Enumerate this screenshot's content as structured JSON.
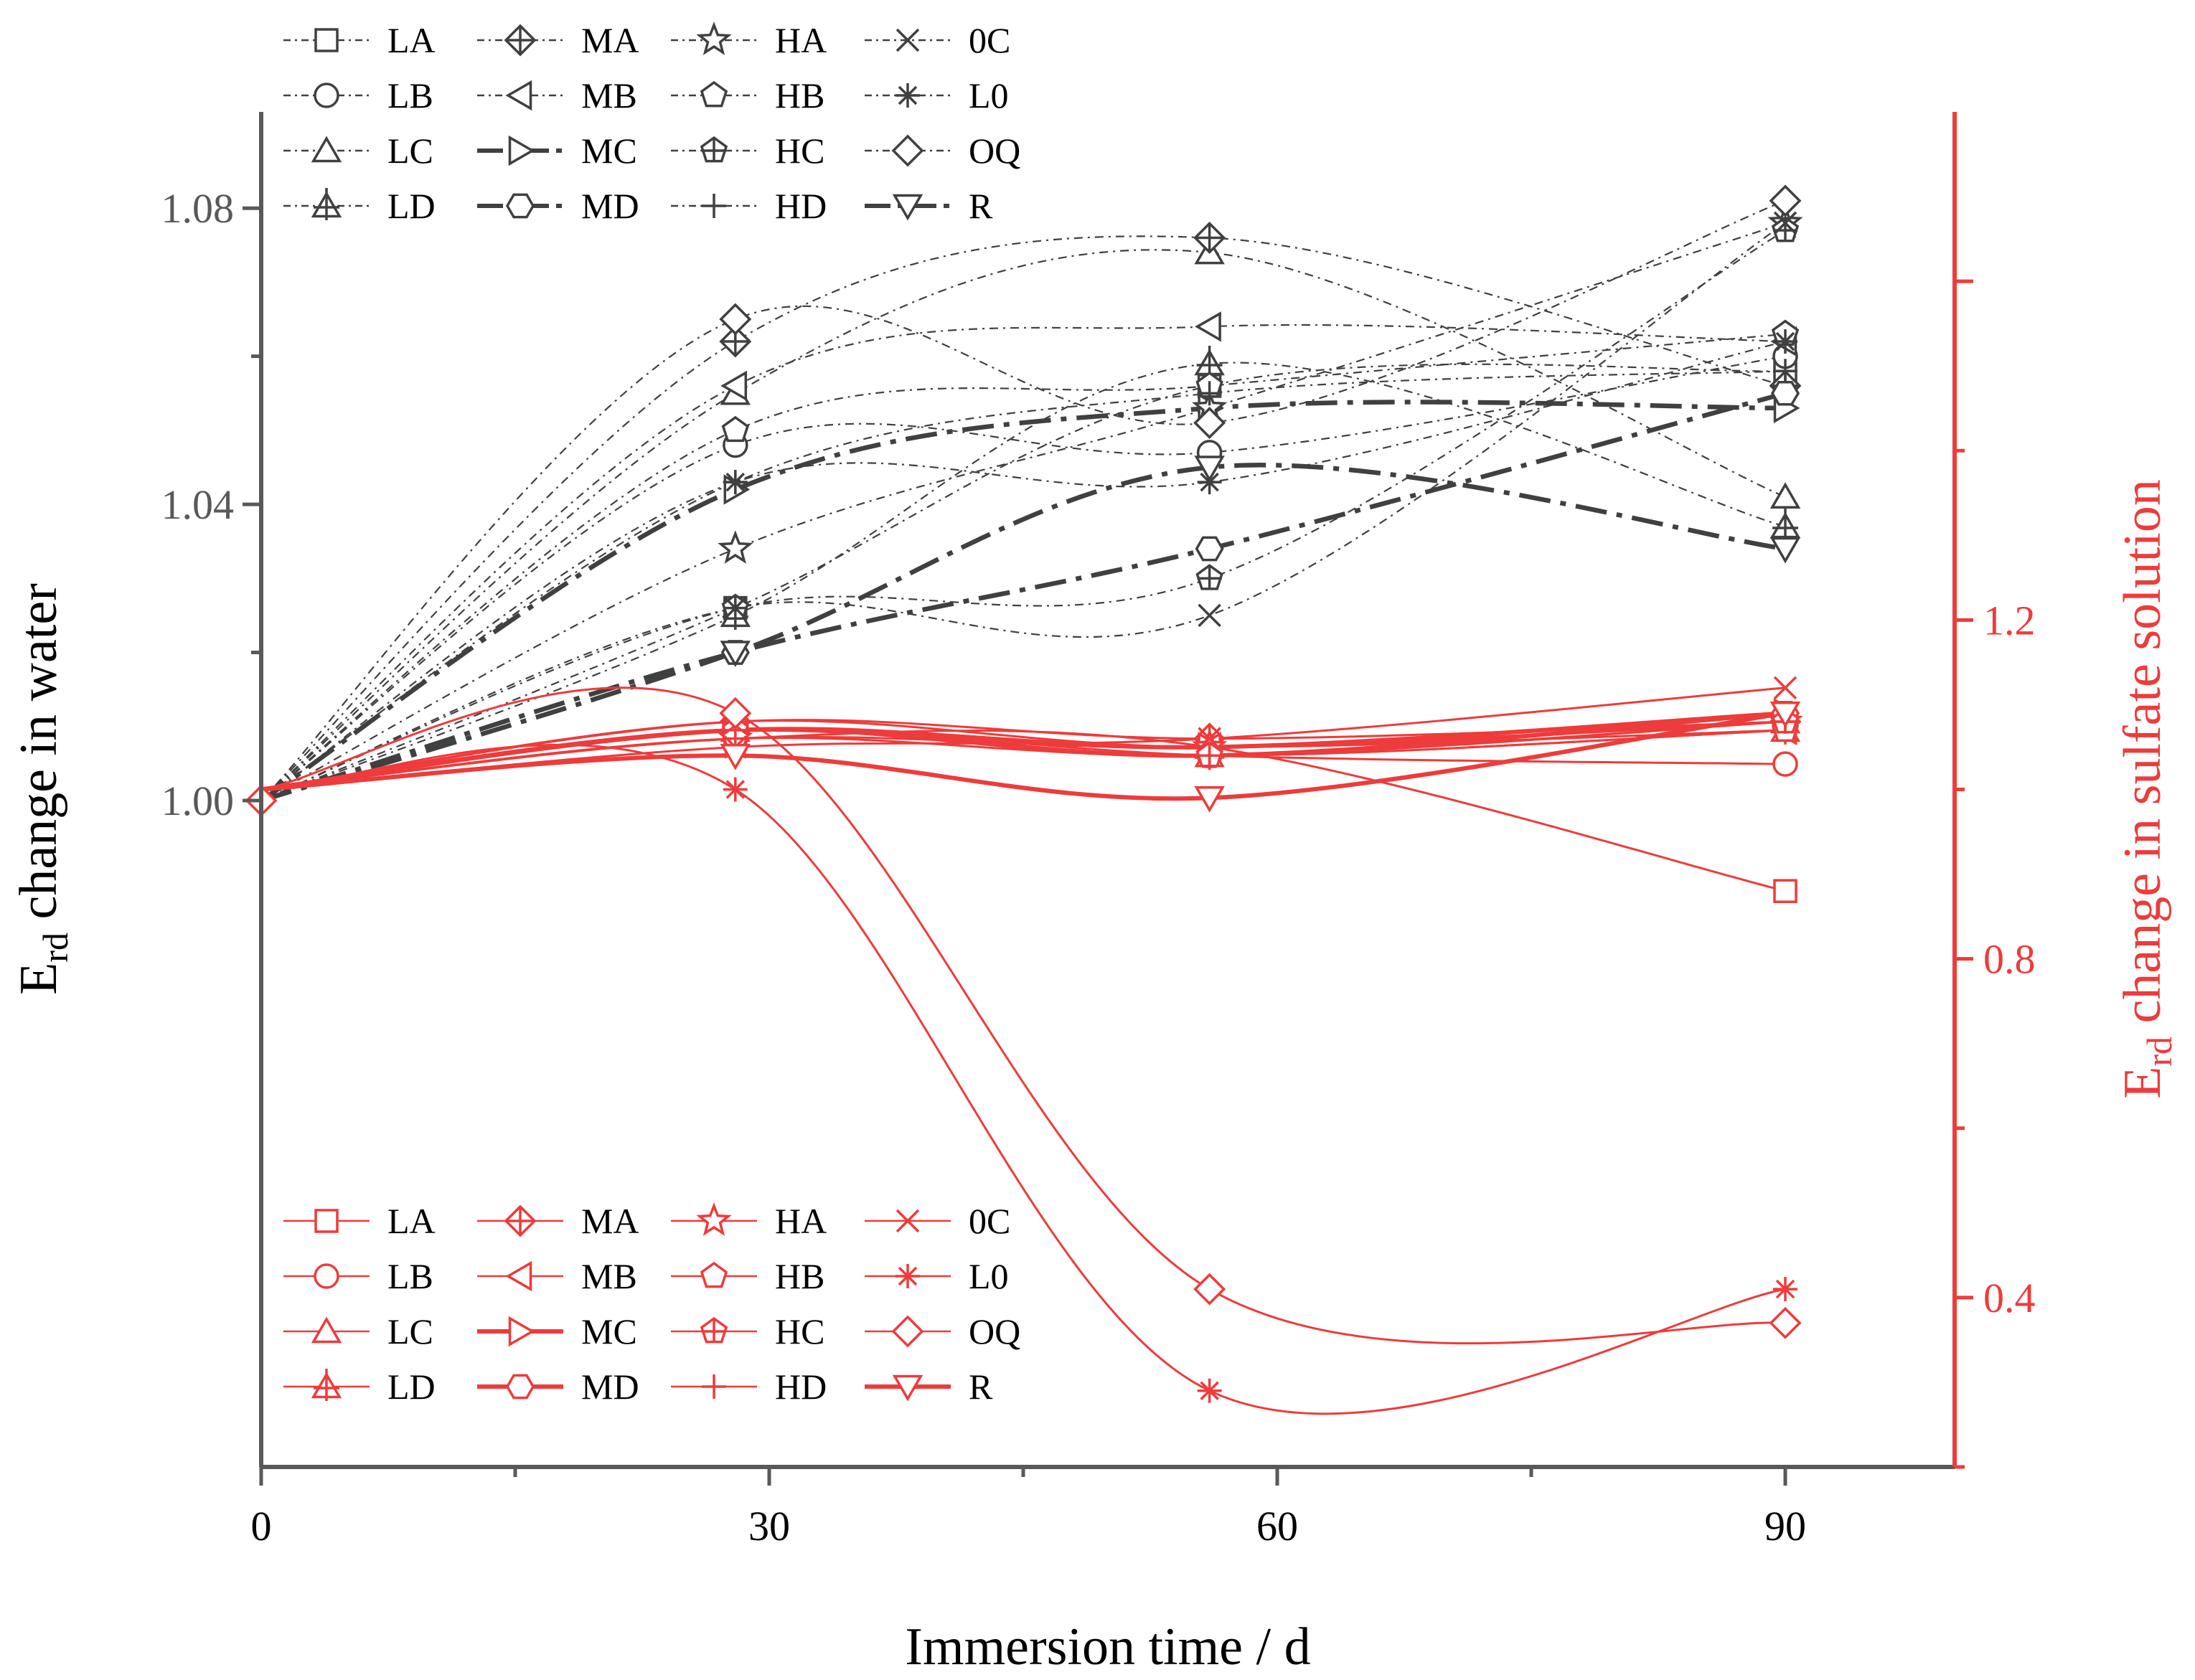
{
  "chart_data": {
    "type": "line",
    "x": [
      0,
      28,
      56,
      90
    ],
    "xlabel": "Immersion time / d",
    "xlim": [
      0,
      100
    ],
    "xticks": [
      0,
      30,
      60,
      90
    ],
    "xtick_labels": [
      "0",
      "30",
      "60",
      "90"
    ],
    "ylabel_left": {
      "base": "E",
      "sub": "rd",
      "rest": " change in water"
    },
    "ylabel_right": {
      "base": "E",
      "sub": "rd",
      "rest": " change in sulfate solution"
    },
    "ylim_left": [
      0.91,
      1.093
    ],
    "yticks_left": [
      1.0,
      1.04,
      1.08
    ],
    "ytick_labels_left": [
      "1.00",
      "1.04",
      "1.08"
    ],
    "ylim_right": [
      0.2,
      1.8
    ],
    "yticks_right": [
      0.4,
      0.8,
      1.2
    ],
    "ytick_labels_right": [
      "0.4",
      "0.8",
      "1.2"
    ],
    "colors": {
      "water": "#404040",
      "sulfate": "#ee3b3b",
      "axis_left": "#595959",
      "axis_right": "#ee3b3b"
    },
    "water_series": [
      {
        "name": "LA",
        "marker": "square",
        "dash": "dashdot",
        "values": [
          1.0,
          1.026,
          1.056,
          1.058
        ]
      },
      {
        "name": "LB",
        "marker": "circle",
        "dash": "dashdot",
        "values": [
          1.0,
          1.048,
          1.047,
          1.06
        ]
      },
      {
        "name": "LC",
        "marker": "triangle-up",
        "dash": "dashdot",
        "values": [
          1.0,
          1.055,
          1.074,
          1.041
        ]
      },
      {
        "name": "LD",
        "marker": "triangle-up-plus",
        "dash": "dashdot",
        "values": [
          1.0,
          1.025,
          1.059,
          1.037
        ]
      },
      {
        "name": "MA",
        "marker": "diamond-plus",
        "dash": "dashdot",
        "values": [
          1.0,
          1.062,
          1.076,
          1.056
        ]
      },
      {
        "name": "MB",
        "marker": "triangle-left",
        "dash": "dashdot",
        "values": [
          1.0,
          1.056,
          1.064,
          1.062
        ]
      },
      {
        "name": "MC",
        "marker": "triangle-right",
        "dash": "dashdot-bold",
        "values": [
          1.0,
          1.042,
          1.053,
          1.053
        ]
      },
      {
        "name": "MD",
        "marker": "hexagon",
        "dash": "dashdot-bold",
        "values": [
          1.0,
          1.02,
          1.034,
          1.055
        ]
      },
      {
        "name": "HA",
        "marker": "star",
        "dash": "dashdot",
        "values": [
          1.0,
          1.034,
          1.053,
          1.078
        ]
      },
      {
        "name": "HB",
        "marker": "pentagon",
        "dash": "dashdot",
        "values": [
          1.0,
          1.05,
          1.056,
          1.063
        ]
      },
      {
        "name": "HC",
        "marker": "pentagon-plus",
        "dash": "dashdot",
        "values": [
          1.0,
          1.026,
          1.03,
          1.077
        ]
      },
      {
        "name": "HD",
        "marker": "plus",
        "dash": "dashdot",
        "values": [
          1.0,
          1.043,
          1.055,
          1.058
        ]
      },
      {
        "name": "0C",
        "marker": "x",
        "dash": "dashdot",
        "values": [
          1.0,
          1.026,
          1.025,
          1.078
        ]
      },
      {
        "name": "L0",
        "marker": "asterisk",
        "dash": "dashdot",
        "values": [
          1.0,
          1.043,
          1.043,
          1.062
        ]
      },
      {
        "name": "OQ",
        "marker": "diamond",
        "dash": "dashdot",
        "values": [
          1.0,
          1.065,
          1.051,
          1.081
        ]
      },
      {
        "name": "R",
        "marker": "triangle-down",
        "dash": "dashdot-bold",
        "values": [
          1.0,
          1.02,
          1.045,
          1.034
        ]
      }
    ],
    "sulfate_series": [
      {
        "name": "LA",
        "marker": "square",
        "bold": false,
        "values": [
          1.0,
          1.06,
          1.05,
          0.88
        ]
      },
      {
        "name": "LB",
        "marker": "circle",
        "bold": false,
        "values": [
          1.0,
          1.07,
          1.04,
          1.03
        ]
      },
      {
        "name": "LC",
        "marker": "triangle-up",
        "bold": false,
        "values": [
          1.0,
          1.08,
          1.05,
          1.08
        ]
      },
      {
        "name": "LD",
        "marker": "triangle-up-plus",
        "bold": false,
        "values": [
          1.0,
          1.07,
          1.04,
          1.07
        ]
      },
      {
        "name": "MA",
        "marker": "diamond-plus",
        "bold": false,
        "values": [
          1.0,
          1.08,
          1.06,
          1.08
        ]
      },
      {
        "name": "MB",
        "marker": "triangle-left",
        "bold": false,
        "values": [
          1.0,
          1.07,
          1.05,
          1.07
        ]
      },
      {
        "name": "MC",
        "marker": "triangle-right",
        "bold": true,
        "values": [
          1.0,
          1.07,
          1.05,
          1.09
        ]
      },
      {
        "name": "MD",
        "marker": "hexagon",
        "bold": true,
        "values": [
          1.0,
          1.07,
          1.04,
          1.09
        ]
      },
      {
        "name": "HA",
        "marker": "star",
        "bold": false,
        "values": [
          1.0,
          1.06,
          1.05,
          1.08
        ]
      },
      {
        "name": "HB",
        "marker": "pentagon",
        "bold": false,
        "values": [
          1.0,
          1.07,
          1.04,
          1.07
        ]
      },
      {
        "name": "HC",
        "marker": "pentagon-plus",
        "bold": false,
        "values": [
          1.0,
          1.06,
          1.04,
          1.08
        ]
      },
      {
        "name": "HD",
        "marker": "plus",
        "bold": false,
        "values": [
          1.0,
          1.07,
          1.04,
          1.08
        ]
      },
      {
        "name": "0C",
        "marker": "x",
        "bold": false,
        "values": [
          1.0,
          1.05,
          1.06,
          1.12
        ]
      },
      {
        "name": "L0",
        "marker": "asterisk",
        "bold": false,
        "values": [
          1.0,
          1.0,
          0.29,
          0.41
        ]
      },
      {
        "name": "OQ",
        "marker": "diamond",
        "bold": false,
        "values": [
          1.0,
          1.09,
          0.41,
          0.37
        ]
      },
      {
        "name": "R",
        "marker": "triangle-down",
        "bold": true,
        "values": [
          1.0,
          1.04,
          0.99,
          1.09
        ]
      }
    ],
    "legend_water_position": "top-left",
    "legend_sulfate_position": "bottom-left"
  }
}
